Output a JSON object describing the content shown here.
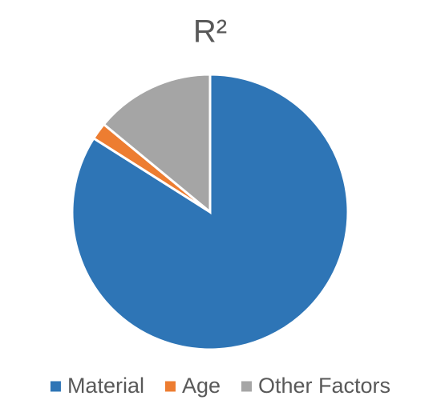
{
  "chart_data": {
    "type": "pie",
    "title": "R²",
    "categories": [
      "Material",
      "Age",
      "Other Factors"
    ],
    "values": [
      84,
      2,
      14
    ],
    "colors": [
      "#2e75b6",
      "#ed7d31",
      "#a5a5a5"
    ],
    "legend": "bottom"
  }
}
